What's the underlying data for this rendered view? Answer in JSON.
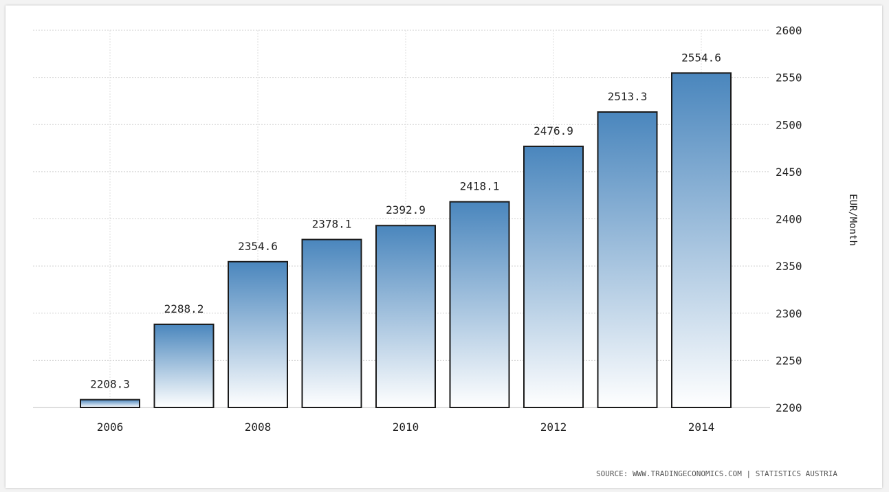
{
  "chart_data": {
    "type": "bar",
    "categories": [
      "2006",
      "2007",
      "2008",
      "2009",
      "2010",
      "2011",
      "2012",
      "2013",
      "2014"
    ],
    "values": [
      2208.3,
      2288.2,
      2354.6,
      2378.1,
      2392.9,
      2418.1,
      2476.9,
      2513.3,
      2554.6
    ],
    "data_labels": [
      "2208.3",
      "2288.2",
      "2354.6",
      "2378.1",
      "2392.9",
      "2418.1",
      "2476.9",
      "2513.3",
      "2554.6"
    ],
    "x_tick_labels": [
      "2006",
      "2008",
      "2010",
      "2012",
      "2014"
    ],
    "y_tick_labels": [
      "2200",
      "2250",
      "2300",
      "2350",
      "2400",
      "2450",
      "2500",
      "2550",
      "2600"
    ],
    "y_ticks": [
      2200,
      2250,
      2300,
      2350,
      2400,
      2450,
      2500,
      2550,
      2600
    ],
    "ylim": [
      2200,
      2600
    ],
    "title": "",
    "xlabel": "",
    "ylabel": "EUR/Month",
    "y_axis_side": "right",
    "grid": true,
    "legend": "none",
    "bar_color_top": "#4a86bd",
    "bar_color_bottom": "#ffffff",
    "bar_border_color": "#1a1a1a",
    "source": "SOURCE: WWW.TRADINGECONOMICS.COM | STATISTICS AUSTRIA"
  }
}
